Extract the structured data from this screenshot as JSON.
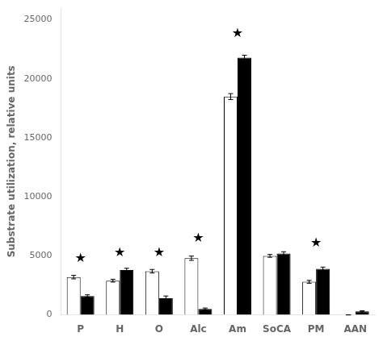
{
  "chart_data": {
    "type": "bar",
    "categories": [
      "P",
      "H",
      "O",
      "Alc",
      "Am",
      "SoCA",
      "PM",
      "AAN"
    ],
    "series": [
      {
        "color": "#ffffff",
        "values": [
          3200,
          2900,
          3700,
          4800,
          18500,
          5000,
          2800,
          0
        ],
        "errors": [
          150,
          120,
          150,
          180,
          250,
          120,
          120,
          0
        ]
      },
      {
        "color": "#000000",
        "values": [
          1600,
          3800,
          1400,
          500,
          21800,
          5200,
          3900,
          300
        ],
        "errors": [
          100,
          150,
          200,
          80,
          200,
          150,
          150,
          50
        ]
      }
    ],
    "ylabel": "Substrate utilization, relative units",
    "ylim": [
      0,
      26000
    ],
    "yticks": [
      0,
      5000,
      10000,
      15000,
      20000,
      25000
    ],
    "annotations": [
      {
        "text": "★",
        "x": "P",
        "y": 4200
      },
      {
        "text": "★",
        "x": "H",
        "y": 4700
      },
      {
        "text": "★",
        "x": "O",
        "y": 4700
      },
      {
        "text": "★",
        "x": "Alc",
        "y": 5900
      },
      {
        "text": "★",
        "x": "Am",
        "y": 23300
      },
      {
        "text": "★",
        "x": "PM",
        "y": 5500
      }
    ],
    "grid": false
  }
}
